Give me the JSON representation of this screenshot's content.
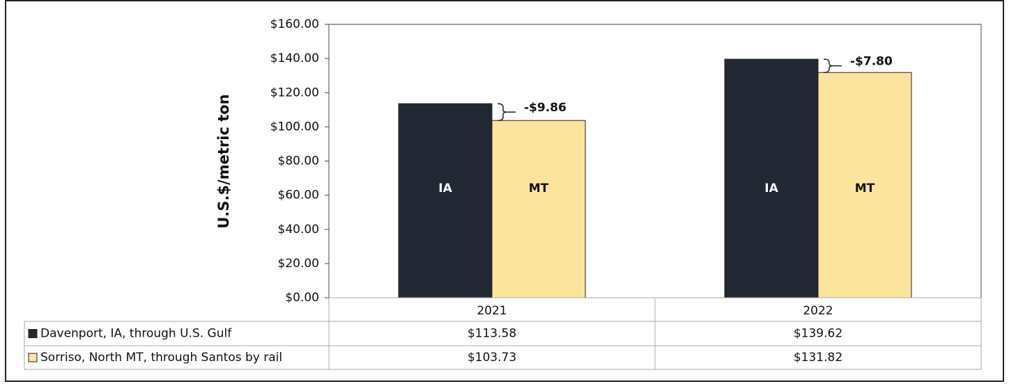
{
  "chart_data": {
    "type": "bar",
    "ylabel": "U.S.$/metric ton",
    "categories": [
      "2021",
      "2022"
    ],
    "series": [
      {
        "name": "Davenport, IA, through U.S. Gulf",
        "label": "IA",
        "color": "#222833",
        "values": [
          113.58,
          139.62
        ],
        "value_labels": [
          "$113.58",
          "$139.62"
        ]
      },
      {
        "name": "Sorriso, North MT, through Santos by rail",
        "label": "MT",
        "color": "#fde49c",
        "values": [
          103.73,
          131.82
        ],
        "value_labels": [
          "$103.73",
          "$131.82"
        ]
      }
    ],
    "differences": [
      -9.86,
      -7.8
    ],
    "difference_labels": [
      "-$9.86",
      "-$7.80"
    ],
    "ylim": [
      0,
      160
    ],
    "yticks": [
      {
        "value": 0,
        "label": "$0.00"
      },
      {
        "value": 20,
        "label": "$20.00"
      },
      {
        "value": 40,
        "label": "$40.00"
      },
      {
        "value": 60,
        "label": "$60.00"
      },
      {
        "value": 80,
        "label": "$80.00"
      },
      {
        "value": 100,
        "label": "$100.00"
      },
      {
        "value": 120,
        "label": "$120.00"
      },
      {
        "value": 140,
        "label": "$140.00"
      },
      {
        "value": 160,
        "label": "$160.00"
      }
    ]
  }
}
